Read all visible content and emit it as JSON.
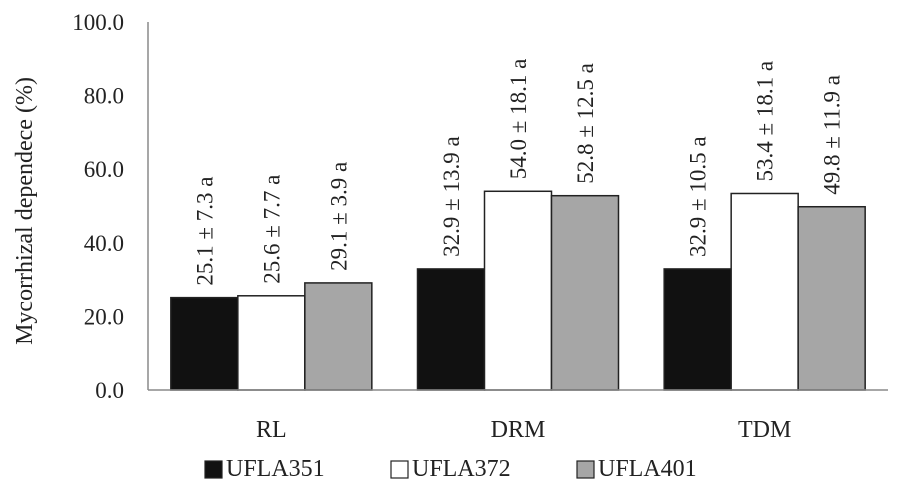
{
  "chart_data": {
    "type": "bar",
    "title": "",
    "xlabel": "",
    "ylabel": "Mycorrhizal dependece (%)",
    "ylim": [
      0,
      100
    ],
    "yticks": [
      "0.0",
      "20.0",
      "40.0",
      "60.0",
      "80.0",
      "100.0"
    ],
    "categories": [
      "RL",
      "DRM",
      "TDM"
    ],
    "series": [
      {
        "name": "UFLA351",
        "color": "#111111",
        "values": [
          25.1,
          32.9,
          32.9
        ],
        "labels": [
          "25.1 ± 7.3 a",
          "32.9 ± 13.9 a",
          "32.9 ± 10.5 a"
        ]
      },
      {
        "name": "UFLA372",
        "color": "#ffffff",
        "values": [
          25.6,
          54.0,
          53.4
        ],
        "labels": [
          "25.6 ± 7.7 a",
          "54.0 ± 18.1 a",
          "53.4 ± 18.1 a"
        ]
      },
      {
        "name": "UFLA401",
        "color": "#a6a6a6",
        "values": [
          29.1,
          52.8,
          49.8
        ],
        "labels": [
          "29.1 ± 3.9 a",
          "52.8 ± 12.5 a",
          "49.8 ± 11.9 a"
        ]
      }
    ],
    "grid": false,
    "legend_position": "bottom"
  }
}
